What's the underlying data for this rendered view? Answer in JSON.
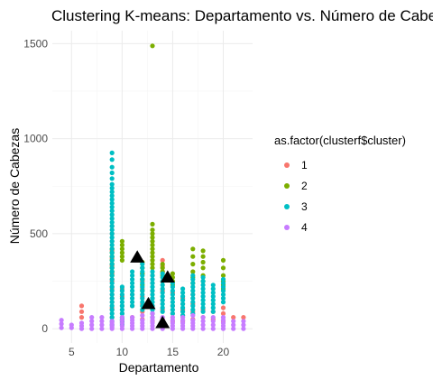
{
  "chart_data": {
    "type": "scatter",
    "title": "Clustering K-means: Departamento vs. Número de Cabezas",
    "xlabel": "Departamento",
    "ylabel": "Número de Cabezas",
    "xlim": [
      3.1,
      22.9
    ],
    "ylim": [
      -75,
      1568
    ],
    "x_ticks": [
      5,
      10,
      15,
      20
    ],
    "y_ticks": [
      0,
      500,
      1000,
      1500
    ],
    "grid": true,
    "legend": {
      "title": "as.factor(clusterf$cluster)",
      "position": "right",
      "entries": [
        "1",
        "2",
        "3",
        "4"
      ]
    },
    "colors": {
      "1": "#F8766D",
      "2": "#7CAE00",
      "3": "#00BFC4",
      "4": "#C77CFF",
      "centroid": "#000000",
      "grid_major": "#ebebeb",
      "grid_minor": "#f5f5f5"
    },
    "series": [
      {
        "name": "1",
        "x": [
          6,
          6,
          6,
          9,
          9,
          9,
          9,
          9,
          9,
          9,
          9,
          9,
          9,
          9,
          9,
          9,
          9,
          9,
          9,
          9,
          9,
          9,
          9,
          9,
          10,
          10,
          10,
          10,
          10,
          11,
          11,
          11,
          12,
          12,
          12,
          12,
          12,
          12,
          12,
          13,
          13,
          13,
          13,
          13,
          13,
          13,
          14,
          14,
          14,
          14,
          14,
          14,
          14,
          14,
          15,
          15,
          15,
          15,
          15,
          16,
          16,
          16,
          16,
          16,
          17,
          17,
          17,
          17,
          18,
          18,
          19,
          19,
          20,
          20,
          20,
          21,
          22
        ],
        "y": [
          60,
          90,
          120,
          60,
          100,
          140,
          180,
          220,
          260,
          300,
          340,
          380,
          420,
          460,
          500,
          540,
          110,
          160,
          210,
          250,
          290,
          330,
          370,
          410,
          40,
          80,
          120,
          170,
          210,
          60,
          120,
          180,
          50,
          90,
          130,
          170,
          210,
          250,
          290,
          40,
          80,
          120,
          160,
          200,
          240,
          280,
          50,
          100,
          150,
          200,
          250,
          300,
          330,
          360,
          40,
          80,
          120,
          160,
          190,
          40,
          70,
          100,
          130,
          160,
          50,
          90,
          130,
          180,
          60,
          100,
          50,
          90,
          40,
          80,
          110,
          60,
          60
        ]
      },
      {
        "name": "2",
        "x": [
          9,
          9,
          9,
          9,
          9,
          9,
          9,
          9,
          10,
          10,
          10,
          10,
          10,
          10,
          12,
          12,
          12,
          12,
          12,
          12,
          13,
          13,
          13,
          13,
          13,
          13,
          13,
          13,
          13,
          13,
          13,
          13,
          13,
          14,
          14,
          14,
          14,
          15,
          15,
          15,
          15,
          17,
          17,
          17,
          17,
          17,
          17,
          18,
          18,
          18,
          18,
          18,
          18,
          20,
          20,
          20,
          20,
          20,
          20
        ],
        "y": [
          280,
          300,
          320,
          340,
          360,
          380,
          400,
          420,
          360,
          380,
          400,
          420,
          440,
          460,
          200,
          230,
          260,
          290,
          320,
          350,
          1488,
          550,
          520,
          500,
          480,
          460,
          440,
          420,
          400,
          380,
          360,
          340,
          320,
          280,
          300,
          320,
          340,
          230,
          250,
          270,
          290,
          420,
          380,
          340,
          300,
          270,
          240,
          410,
          380,
          350,
          320,
          280,
          250,
          360,
          320,
          280,
          250,
          230,
          210
        ]
      },
      {
        "name": "3",
        "x": [
          9,
          9,
          9,
          9,
          9,
          9,
          9,
          9,
          9,
          9,
          9,
          9,
          9,
          9,
          9,
          9,
          9,
          9,
          9,
          9,
          9,
          9,
          9,
          9,
          9,
          9,
          9,
          9,
          9,
          9,
          9,
          9,
          9,
          9,
          9,
          9,
          9,
          9,
          9,
          9,
          9,
          9,
          9,
          10,
          10,
          10,
          10,
          10,
          10,
          10,
          10,
          10,
          10,
          10,
          10,
          10,
          11,
          11,
          11,
          11,
          11,
          11,
          11,
          11,
          11,
          11,
          12,
          12,
          12,
          12,
          12,
          12,
          12,
          12,
          12,
          12,
          12,
          12,
          12,
          13,
          13,
          13,
          13,
          13,
          13,
          13,
          13,
          13,
          13,
          13,
          13,
          13,
          14,
          14,
          14,
          14,
          14,
          14,
          14,
          14,
          14,
          14,
          14,
          15,
          15,
          15,
          15,
          15,
          15,
          15,
          15,
          15,
          16,
          16,
          16,
          16,
          16,
          16,
          16,
          16,
          17,
          17,
          17,
          17,
          17,
          17,
          17,
          17,
          17,
          17,
          17,
          18,
          18,
          18,
          18,
          18,
          18,
          18,
          18,
          18,
          18,
          19,
          19,
          19,
          19,
          19,
          19,
          19,
          19,
          20,
          20,
          20,
          20,
          20,
          20,
          20
        ],
        "y": [
          925,
          890,
          850,
          820,
          790,
          760,
          740,
          720,
          700,
          680,
          660,
          640,
          620,
          600,
          580,
          560,
          540,
          520,
          500,
          480,
          460,
          440,
          420,
          400,
          380,
          360,
          340,
          320,
          300,
          280,
          260,
          240,
          220,
          200,
          180,
          160,
          140,
          120,
          100,
          80,
          60,
          40,
          20,
          220,
          200,
          180,
          160,
          140,
          120,
          100,
          80,
          60,
          50,
          40,
          30,
          20,
          300,
          280,
          260,
          240,
          220,
          200,
          180,
          160,
          140,
          120,
          340,
          320,
          300,
          280,
          260,
          240,
          220,
          200,
          180,
          160,
          140,
          120,
          100,
          300,
          280,
          260,
          240,
          220,
          200,
          180,
          160,
          140,
          120,
          100,
          80,
          60,
          290,
          270,
          250,
          230,
          210,
          190,
          170,
          150,
          130,
          110,
          90,
          240,
          220,
          200,
          180,
          160,
          140,
          120,
          100,
          80,
          210,
          190,
          170,
          150,
          130,
          110,
          90,
          70,
          280,
          260,
          240,
          220,
          200,
          180,
          160,
          140,
          120,
          100,
          80,
          270,
          250,
          230,
          210,
          190,
          170,
          150,
          130,
          110,
          90,
          230,
          210,
          190,
          170,
          150,
          130,
          110,
          90,
          260,
          240,
          220,
          200,
          180,
          160,
          140
        ]
      },
      {
        "name": "4",
        "x": [
          4,
          4,
          4,
          5,
          5,
          6,
          6,
          6,
          7,
          7,
          7,
          7,
          8,
          8,
          8,
          8,
          9,
          9,
          9,
          9,
          9,
          10,
          10,
          10,
          10,
          10,
          11,
          11,
          11,
          11,
          11,
          12,
          12,
          12,
          12,
          12,
          13,
          13,
          13,
          13,
          13,
          13,
          14,
          14,
          14,
          14,
          14,
          15,
          15,
          15,
          15,
          15,
          16,
          16,
          16,
          16,
          16,
          17,
          17,
          17,
          17,
          17,
          18,
          18,
          18,
          18,
          19,
          19,
          19,
          19,
          20,
          20,
          20,
          20,
          20,
          21,
          21,
          21,
          22,
          22,
          22
        ],
        "y": [
          5,
          25,
          45,
          5,
          20,
          0,
          15,
          30,
          0,
          20,
          40,
          60,
          0,
          20,
          40,
          60,
          0,
          10,
          20,
          30,
          40,
          0,
          15,
          30,
          45,
          60,
          0,
          15,
          30,
          45,
          60,
          0,
          15,
          30,
          45,
          70,
          0,
          15,
          30,
          45,
          60,
          80,
          0,
          15,
          30,
          45,
          60,
          0,
          15,
          30,
          45,
          60,
          0,
          15,
          30,
          45,
          60,
          0,
          15,
          30,
          45,
          70,
          0,
          20,
          40,
          60,
          0,
          20,
          40,
          60,
          0,
          15,
          30,
          45,
          60,
          0,
          20,
          40,
          0,
          20,
          40
        ]
      }
    ],
    "centroids": {
      "name": "centroids",
      "x": [
        11.5,
        12.6,
        14.5,
        14.0
      ],
      "y": [
        375,
        130,
        270,
        30
      ]
    }
  }
}
